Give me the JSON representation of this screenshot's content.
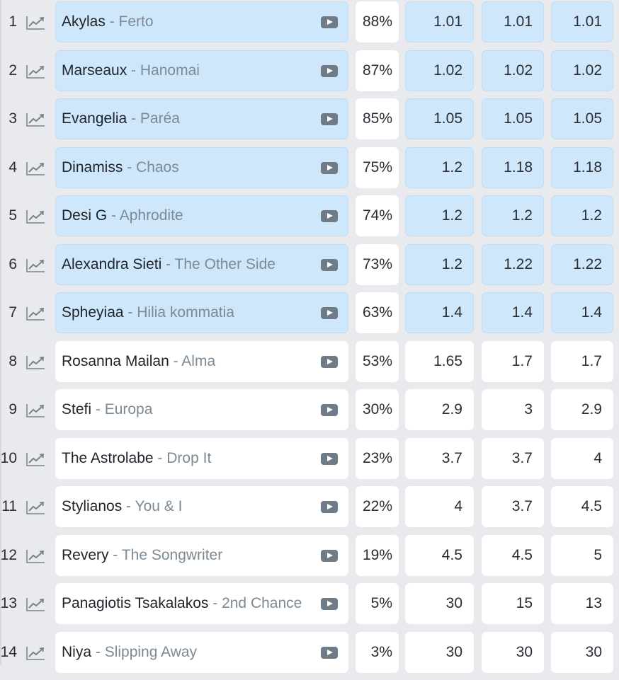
{
  "colors": {
    "background": "#e9eaee",
    "favorite_cell": "#cfe7fb",
    "normal_cell": "#ffffff",
    "text": "#2a2d33",
    "song_text": "#7d8a94",
    "play_icon": "#6f7b87",
    "trend_icon": "#7b818a"
  },
  "rows": [
    {
      "rank": "1",
      "artist": "Akylas",
      "song": "Ferto",
      "percent": "88%",
      "odds": [
        "1.01",
        "1.01",
        "1.01"
      ],
      "highlighted": true
    },
    {
      "rank": "2",
      "artist": "Marseaux",
      "song": "Hanomai",
      "percent": "87%",
      "odds": [
        "1.02",
        "1.02",
        "1.02"
      ],
      "highlighted": true
    },
    {
      "rank": "3",
      "artist": "Evangelia",
      "song": "Paréa",
      "percent": "85%",
      "odds": [
        "1.05",
        "1.05",
        "1.05"
      ],
      "highlighted": true
    },
    {
      "rank": "4",
      "artist": "Dinamiss",
      "song": "Chaos",
      "percent": "75%",
      "odds": [
        "1.2",
        "1.18",
        "1.18"
      ],
      "highlighted": true
    },
    {
      "rank": "5",
      "artist": "Desi G",
      "song": "Aphrodite",
      "percent": "74%",
      "odds": [
        "1.2",
        "1.2",
        "1.2"
      ],
      "highlighted": true
    },
    {
      "rank": "6",
      "artist": "Alexandra Sieti",
      "song": "The Other Side",
      "percent": "73%",
      "odds": [
        "1.2",
        "1.22",
        "1.22"
      ],
      "highlighted": true
    },
    {
      "rank": "7",
      "artist": "Spheyiaa",
      "song": "Hilia kommatia",
      "percent": "63%",
      "odds": [
        "1.4",
        "1.4",
        "1.4"
      ],
      "highlighted": true
    },
    {
      "rank": "8",
      "artist": "Rosanna Mailan",
      "song": "Alma",
      "percent": "53%",
      "odds": [
        "1.65",
        "1.7",
        "1.7"
      ],
      "highlighted": false
    },
    {
      "rank": "9",
      "artist": "Stefi",
      "song": "Europa",
      "percent": "30%",
      "odds": [
        "2.9",
        "3",
        "2.9"
      ],
      "highlighted": false
    },
    {
      "rank": "10",
      "artist": "The Astrolabe",
      "song": "Drop It",
      "percent": "23%",
      "odds": [
        "3.7",
        "3.7",
        "4"
      ],
      "highlighted": false
    },
    {
      "rank": "11",
      "artist": "Stylianos",
      "song": "You & I",
      "percent": "22%",
      "odds": [
        "4",
        "3.7",
        "4.5"
      ],
      "highlighted": false
    },
    {
      "rank": "12",
      "artist": "Revery",
      "song": "The Songwriter",
      "percent": "19%",
      "odds": [
        "4.5",
        "4.5",
        "5"
      ],
      "highlighted": false
    },
    {
      "rank": "13",
      "artist": "Panagiotis Tsakalakos",
      "song": "2nd Chance",
      "percent": "5%",
      "odds": [
        "30",
        "15",
        "13"
      ],
      "highlighted": false
    },
    {
      "rank": "14",
      "artist": "Niya",
      "song": "Slipping Away",
      "percent": "3%",
      "odds": [
        "30",
        "30",
        "30"
      ],
      "highlighted": false
    }
  ],
  "separator": " - ",
  "icons": {
    "trend": "trend-chart-icon",
    "play": "play-video-icon"
  }
}
